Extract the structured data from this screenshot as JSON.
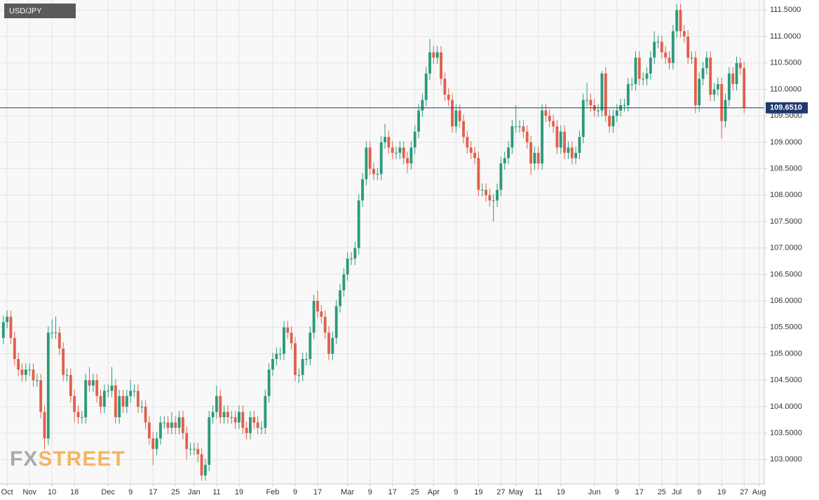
{
  "chart_data": {
    "type": "candlestick",
    "title": "USD/JPY",
    "watermark": [
      "FX",
      "STREET"
    ],
    "up_color": "#2b9a7a",
    "down_color": "#e0604c",
    "grid": true,
    "xlim": [
      -0.9,
      203.4
    ],
    "ylim": [
      102.54,
      111.69
    ],
    "xticks": [
      {
        "value": 1,
        "label": "Oct"
      },
      {
        "value": 7,
        "label": "Nov"
      },
      {
        "value": 13,
        "label": "10"
      },
      {
        "value": 19,
        "label": "18"
      },
      {
        "value": 28,
        "label": "Dec"
      },
      {
        "value": 34,
        "label": "9"
      },
      {
        "value": 40,
        "label": "17"
      },
      {
        "value": 46,
        "label": "25"
      },
      {
        "value": 51,
        "label": "Jan"
      },
      {
        "value": 57,
        "label": "11"
      },
      {
        "value": 63,
        "label": "19"
      },
      {
        "value": 72,
        "label": "Feb"
      },
      {
        "value": 78,
        "label": "9"
      },
      {
        "value": 84,
        "label": "17"
      },
      {
        "value": 92,
        "label": "Mar"
      },
      {
        "value": 98,
        "label": "9"
      },
      {
        "value": 104,
        "label": "17"
      },
      {
        "value": 110,
        "label": "25"
      },
      {
        "value": 115,
        "label": "Apr"
      },
      {
        "value": 121,
        "label": "9"
      },
      {
        "value": 127,
        "label": "19"
      },
      {
        "value": 133,
        "label": "27"
      },
      {
        "value": 137,
        "label": "May"
      },
      {
        "value": 143,
        "label": "11"
      },
      {
        "value": 149,
        "label": "19"
      },
      {
        "value": 158,
        "label": "Jun"
      },
      {
        "value": 164,
        "label": "9"
      },
      {
        "value": 170,
        "label": "17"
      },
      {
        "value": 176,
        "label": "25"
      },
      {
        "value": 180,
        "label": "Jul"
      },
      {
        "value": 186,
        "label": "9"
      },
      {
        "value": 192,
        "label": "19"
      },
      {
        "value": 198,
        "label": "27"
      },
      {
        "value": 202,
        "label": "Aug"
      }
    ],
    "yticks": [
      {
        "value": 103.0,
        "label": "103.0000"
      },
      {
        "value": 103.5,
        "label": "103.5000"
      },
      {
        "value": 104.0,
        "label": "104.0000"
      },
      {
        "value": 104.5,
        "label": "104.5000"
      },
      {
        "value": 105.0,
        "label": "105.0000"
      },
      {
        "value": 105.5,
        "label": "105.5000"
      },
      {
        "value": 106.0,
        "label": "106.0000"
      },
      {
        "value": 106.5,
        "label": "106.5000"
      },
      {
        "value": 107.0,
        "label": "107.0000"
      },
      {
        "value": 107.5,
        "label": "107.5000"
      },
      {
        "value": 108.0,
        "label": "108.0000"
      },
      {
        "value": 108.5,
        "label": "108.5000"
      },
      {
        "value": 109.0,
        "label": "109.0000"
      },
      {
        "value": 109.5,
        "label": "109.5000"
      },
      {
        "value": 110.0,
        "label": "110.0000"
      },
      {
        "value": 110.5,
        "label": "110.5000"
      },
      {
        "value": 111.0,
        "label": "111.0000"
      },
      {
        "value": 111.5,
        "label": "111.5000"
      }
    ],
    "current_price": {
      "value": 109.651,
      "label": "109.6510",
      "color": "#1f3a6e"
    },
    "open": [
      105.3,
      105.6,
      105.7,
      105.3,
      104.9,
      104.7,
      104.6,
      104.7,
      104.7,
      104.5,
      104.5,
      103.9,
      103.4,
      105.4,
      105.4,
      105.4,
      105.1,
      104.6,
      104.6,
      104.2,
      103.9,
      103.8,
      103.8,
      104.5,
      104.4,
      104.5,
      104.2,
      104.0,
      104.3,
      104.3,
      104.4,
      103.8,
      104.2,
      104.0,
      104.2,
      104.3,
      104.3,
      104.0,
      104.0,
      103.7,
      103.4,
      103.2,
      103.4,
      103.7,
      103.7,
      103.6,
      103.7,
      103.6,
      103.8,
      103.5,
      103.2,
      103.2,
      103.2,
      103.1,
      102.7,
      102.9,
      103.8,
      103.9,
      104.2,
      103.8,
      103.9,
      103.8,
      103.8,
      103.7,
      103.9,
      103.6,
      103.5,
      103.8,
      103.7,
      103.6,
      103.6,
      104.2,
      104.7,
      104.9,
      105.0,
      105.0,
      105.5,
      105.4,
      105.2,
      104.6,
      104.6,
      104.9,
      104.9,
      105.4,
      106.0,
      105.8,
      105.7,
      105.4,
      105.0,
      105.3,
      105.9,
      106.2,
      106.5,
      106.8,
      106.8,
      107.0,
      107.9,
      108.3,
      108.9,
      108.5,
      108.4,
      108.4,
      109.0,
      109.1,
      108.9,
      108.8,
      108.8,
      108.9,
      108.7,
      108.6,
      108.9,
      109.2,
      109.6,
      109.8,
      110.3,
      110.7,
      110.6,
      110.7,
      110.2,
      109.9,
      109.8,
      109.3,
      109.6,
      109.4,
      109.1,
      108.9,
      108.8,
      108.7,
      108.1,
      108.1,
      108.0,
      107.9,
      107.9,
      108.1,
      108.6,
      108.7,
      108.9,
      109.3,
      109.3,
      109.3,
      109.2,
      109.0,
      108.6,
      108.8,
      108.6,
      109.6,
      109.5,
      109.4,
      109.3,
      108.9,
      109.2,
      108.8,
      108.9,
      108.7,
      108.8,
      109.1,
      109.8,
      109.8,
      109.7,
      109.6,
      109.6,
      110.3,
      109.5,
      109.3,
      109.5,
      109.6,
      109.7,
      109.7,
      110.1,
      110.1,
      110.6,
      110.2,
      110.2,
      110.3,
      110.6,
      110.9,
      110.9,
      110.7,
      110.6,
      110.5,
      111.1,
      111.5,
      111.1,
      111.0,
      110.6,
      110.6,
      109.7,
      110.2,
      110.4,
      110.6,
      109.9,
      110.0,
      110.1,
      109.4,
      109.8,
      110.3,
      110.1,
      110.5,
      110.4
    ],
    "high": [
      105.72,
      105.82,
      105.82,
      105.42,
      105.02,
      104.82,
      104.82,
      104.82,
      104.82,
      104.62,
      104.62,
      104.02,
      105.52,
      105.65,
      105.7,
      105.52,
      105.22,
      104.72,
      104.72,
      104.32,
      104.02,
      103.92,
      104.62,
      104.75,
      104.62,
      104.62,
      104.32,
      104.42,
      104.42,
      104.75,
      104.52,
      104.32,
      104.32,
      104.32,
      104.5,
      104.42,
      104.42,
      104.12,
      104.12,
      103.82,
      103.52,
      103.52,
      103.82,
      103.82,
      103.82,
      103.9,
      103.82,
      103.92,
      103.92,
      103.62,
      103.32,
      103.32,
      103.32,
      103.22,
      103.02,
      103.92,
      104.02,
      104.4,
      104.32,
      104.02,
      104.02,
      103.92,
      103.92,
      104.02,
      104.02,
      103.72,
      103.92,
      103.92,
      103.82,
      103.72,
      104.32,
      104.82,
      105.02,
      105.12,
      105.12,
      105.62,
      105.62,
      105.52,
      105.32,
      104.72,
      105.02,
      105.02,
      105.52,
      106.12,
      106.2,
      105.92,
      105.82,
      105.52,
      105.42,
      106.02,
      106.32,
      106.62,
      106.92,
      106.92,
      107.12,
      108.02,
      108.42,
      109.02,
      109.02,
      108.62,
      108.52,
      109.12,
      109.35,
      109.22,
      109.02,
      108.92,
      109.02,
      109.02,
      108.82,
      109.02,
      109.32,
      109.72,
      109.92,
      110.42,
      110.95,
      110.82,
      110.82,
      110.82,
      110.32,
      110.02,
      109.92,
      109.72,
      109.72,
      109.52,
      109.22,
      109.02,
      108.92,
      108.82,
      108.22,
      108.22,
      108.12,
      108.02,
      108.22,
      108.72,
      108.82,
      109.02,
      109.42,
      109.7,
      109.42,
      109.42,
      109.32,
      109.12,
      108.92,
      108.92,
      109.72,
      109.72,
      109.62,
      109.52,
      109.42,
      109.32,
      109.32,
      109.02,
      109.02,
      108.92,
      109.22,
      109.92,
      110.12,
      109.92,
      109.82,
      109.72,
      110.35,
      110.42,
      109.62,
      109.62,
      109.72,
      109.82,
      109.82,
      110.22,
      110.22,
      110.72,
      110.72,
      110.32,
      110.42,
      110.72,
      111.1,
      111.02,
      111.02,
      110.82,
      110.72,
      111.22,
      111.62,
      111.62,
      111.22,
      111.12,
      110.72,
      110.72,
      110.32,
      110.52,
      110.72,
      110.72,
      110.12,
      110.22,
      110.22,
      109.92,
      110.42,
      110.42,
      110.62,
      110.6,
      110.52
    ],
    "low": [
      105.18,
      105.48,
      105.18,
      104.78,
      104.58,
      104.48,
      104.48,
      104.58,
      104.38,
      104.38,
      103.78,
      103.18,
      103.28,
      105.28,
      105.28,
      104.98,
      104.48,
      104.48,
      104.08,
      103.7,
      103.68,
      103.68,
      103.68,
      104.28,
      104.28,
      104.08,
      103.88,
      103.88,
      104.18,
      104.18,
      103.68,
      103.68,
      103.88,
      103.88,
      104.08,
      104.18,
      103.88,
      103.88,
      103.58,
      103.28,
      102.9,
      103.08,
      103.28,
      103.58,
      103.48,
      103.48,
      103.48,
      103.48,
      103.38,
      103.0,
      103.08,
      103.08,
      102.95,
      102.6,
      102.6,
      102.78,
      103.68,
      103.78,
      103.68,
      103.68,
      103.68,
      103.68,
      103.58,
      103.58,
      103.48,
      103.38,
      103.38,
      103.58,
      103.48,
      103.48,
      103.48,
      104.08,
      104.58,
      104.78,
      104.88,
      104.88,
      105.28,
      105.08,
      104.48,
      104.45,
      104.48,
      104.78,
      104.78,
      105.28,
      105.68,
      105.58,
      105.28,
      104.88,
      104.88,
      105.18,
      105.78,
      106.08,
      106.38,
      106.68,
      106.68,
      106.88,
      107.78,
      108.18,
      108.38,
      108.28,
      108.28,
      108.28,
      108.88,
      108.78,
      108.68,
      108.68,
      108.68,
      108.58,
      108.42,
      108.48,
      108.78,
      109.08,
      109.48,
      109.68,
      110.18,
      110.48,
      110.48,
      110.08,
      109.78,
      109.68,
      109.18,
      109.18,
      109.28,
      108.98,
      108.78,
      108.68,
      108.58,
      107.98,
      107.98,
      107.88,
      107.78,
      107.5,
      107.78,
      107.98,
      108.48,
      108.58,
      108.78,
      109.18,
      109.18,
      109.08,
      108.88,
      108.38,
      108.48,
      108.48,
      108.48,
      109.38,
      109.28,
      109.18,
      108.78,
      108.78,
      108.68,
      108.68,
      108.58,
      108.58,
      108.68,
      108.98,
      109.68,
      109.58,
      109.48,
      109.48,
      109.48,
      109.38,
      109.18,
      109.18,
      109.38,
      109.48,
      109.58,
      109.58,
      109.98,
      109.98,
      110.08,
      110.08,
      110.08,
      110.18,
      110.48,
      110.78,
      110.58,
      110.48,
      110.38,
      110.38,
      110.98,
      110.98,
      110.88,
      110.48,
      110.48,
      109.55,
      109.58,
      110.08,
      110.28,
      109.78,
      109.78,
      109.88,
      109.07,
      109.28,
      109.68,
      109.98,
      109.98,
      110.28,
      109.55
    ],
    "close": [
      105.6,
      105.7,
      105.3,
      104.9,
      104.7,
      104.6,
      104.7,
      104.7,
      104.5,
      104.5,
      103.9,
      103.4,
      105.4,
      105.4,
      105.4,
      105.1,
      104.6,
      104.6,
      104.2,
      103.9,
      103.8,
      103.8,
      104.5,
      104.4,
      104.5,
      104.2,
      104.0,
      104.3,
      104.3,
      104.4,
      103.8,
      104.2,
      104.0,
      104.2,
      104.3,
      104.3,
      104.0,
      104.0,
      103.7,
      103.4,
      103.2,
      103.4,
      103.7,
      103.7,
      103.6,
      103.7,
      103.6,
      103.8,
      103.5,
      103.2,
      103.2,
      103.2,
      103.1,
      102.7,
      102.9,
      103.8,
      103.9,
      104.2,
      103.8,
      103.9,
      103.8,
      103.8,
      103.7,
      103.9,
      103.6,
      103.5,
      103.8,
      103.7,
      103.6,
      103.6,
      104.2,
      104.7,
      104.9,
      105.0,
      105.0,
      105.5,
      105.4,
      105.2,
      104.6,
      104.6,
      104.9,
      104.9,
      105.4,
      106.0,
      105.8,
      105.7,
      105.4,
      105.0,
      105.3,
      105.9,
      106.2,
      106.5,
      106.8,
      106.8,
      107.0,
      107.9,
      108.3,
      108.9,
      108.5,
      108.4,
      108.4,
      109.0,
      109.1,
      108.9,
      108.8,
      108.8,
      108.9,
      108.7,
      108.6,
      108.9,
      109.2,
      109.6,
      109.8,
      110.3,
      110.7,
      110.6,
      110.7,
      110.2,
      109.9,
      109.8,
      109.3,
      109.6,
      109.4,
      109.1,
      108.9,
      108.8,
      108.7,
      108.1,
      108.1,
      108.0,
      107.9,
      107.9,
      108.1,
      108.6,
      108.7,
      108.9,
      109.3,
      109.3,
      109.3,
      109.2,
      109.0,
      108.6,
      108.8,
      108.6,
      109.6,
      109.5,
      109.4,
      109.3,
      108.9,
      109.2,
      108.8,
      108.9,
      108.7,
      108.8,
      109.1,
      109.8,
      109.8,
      109.7,
      109.6,
      109.6,
      110.3,
      109.5,
      109.3,
      109.5,
      109.6,
      109.7,
      109.7,
      110.1,
      110.1,
      110.6,
      110.2,
      110.2,
      110.3,
      110.6,
      110.9,
      110.9,
      110.7,
      110.6,
      110.5,
      111.1,
      111.5,
      111.1,
      111.0,
      110.6,
      110.6,
      109.7,
      110.2,
      110.4,
      110.6,
      109.9,
      110.0,
      110.1,
      109.4,
      109.8,
      110.3,
      110.1,
      110.5,
      110.4,
      109.65
    ]
  }
}
